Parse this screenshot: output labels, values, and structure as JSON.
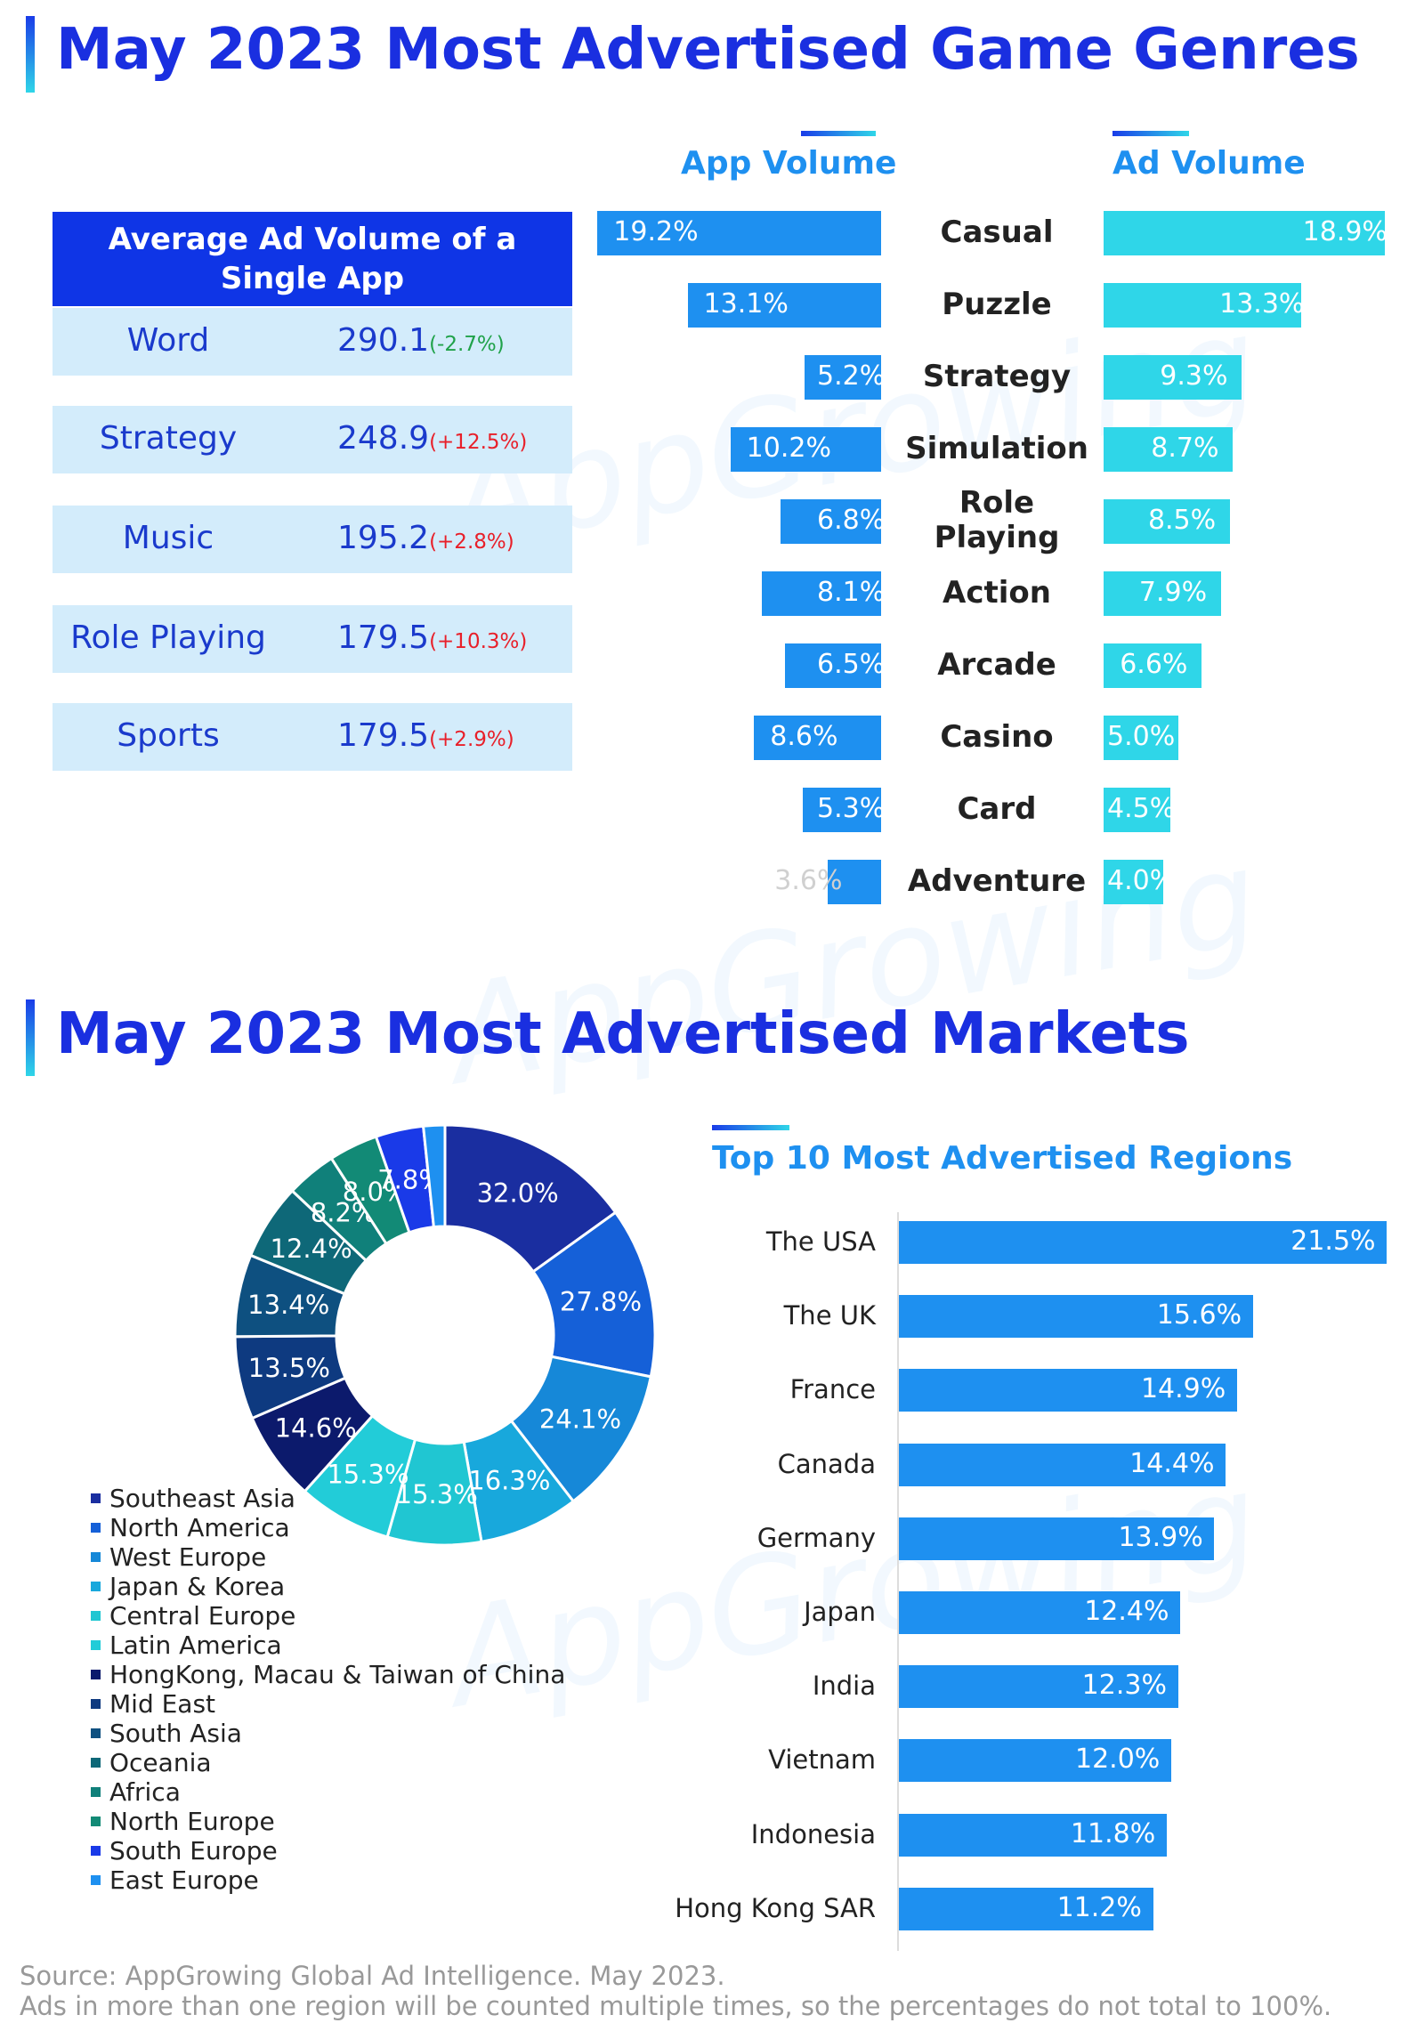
{
  "section1": {
    "title": "May 2023 Most Advertised Game Genres"
  },
  "section2": {
    "title": "May 2023 Most Advertised Markets"
  },
  "avg_table": {
    "title": "Average Ad Volume of a Single App",
    "rows": [
      {
        "name": "Word",
        "value": "290.1",
        "change": "(-2.7%)",
        "dir": "down"
      },
      {
        "name": "Strategy",
        "value": "248.9",
        "change": "(+12.5%)",
        "dir": "up"
      },
      {
        "name": "Music",
        "value": "195.2",
        "change": "(+2.8%)",
        "dir": "up"
      },
      {
        "name": "Role Playing",
        "value": "179.5",
        "change": "(+10.3%)",
        "dir": "up"
      },
      {
        "name": "Sports",
        "value": "179.5",
        "change": "(+2.9%)",
        "dir": "up"
      }
    ]
  },
  "watermark": "AppGrowing",
  "footnote": {
    "source": "Source: AppGrowing Global Ad Intelligence. May 2023.",
    "note": "Ads in more than one region will be counted multiple times, so the percentages do not total to 100%."
  },
  "chart_data": [
    {
      "type": "bar",
      "orientation": "horizontal-butterfly",
      "categories": [
        "Casual",
        "Puzzle",
        "Strategy",
        "Simulation",
        "Role Playing",
        "Action",
        "Arcade",
        "Casino",
        "Card",
        "Adventure"
      ],
      "series": [
        {
          "name": "App Volume",
          "values": [
            19.2,
            13.1,
            5.2,
            10.2,
            6.8,
            8.1,
            6.5,
            8.6,
            5.3,
            3.6
          ],
          "labels": [
            "19.2%",
            "13.1%",
            "5.2%",
            "10.2%",
            "6.8%",
            "8.1%",
            "6.5%",
            "8.6%",
            "5.3%",
            "3.6%"
          ],
          "color": "#1e90f0"
        },
        {
          "name": "Ad Volume",
          "values": [
            18.9,
            13.3,
            9.3,
            8.7,
            8.5,
            7.9,
            6.6,
            5.0,
            4.5,
            4.0
          ],
          "labels": [
            "18.9%",
            "13.3%",
            "9.3%",
            "8.7%",
            "8.5%",
            "7.9%",
            "6.6%",
            "5.0%",
            "4.5%",
            "4.0%"
          ],
          "color": "#2fd6e8"
        }
      ],
      "unit": "%"
    },
    {
      "type": "pie",
      "style": "donut",
      "categories": [
        "Southeast Asia",
        "North America",
        "West Europe",
        "Japan & Korea",
        "Central Europe",
        "Latin America",
        "HongKong, Macau & Taiwan of China",
        "Mid East",
        "South Asia",
        "Oceania",
        "Africa",
        "North Europe",
        "South Europe",
        "East Europe"
      ],
      "values": [
        32.0,
        27.8,
        24.1,
        16.3,
        15.3,
        15.3,
        14.6,
        13.5,
        13.4,
        12.4,
        8.2,
        8.0,
        7.8,
        3.5
      ],
      "labels": [
        "32.0%",
        "27.8%",
        "24.1%",
        "16.3%",
        "15.3%",
        "15.3%",
        "14.6%",
        "13.5%",
        "13.4%",
        "12.4%",
        "8.2%",
        "8.0%",
        "7.8%",
        ""
      ],
      "colors": [
        "#1a2ea0",
        "#1560d8",
        "#1688d8",
        "#18a8dc",
        "#20c6d2",
        "#22ccd8",
        "#0c1a6c",
        "#0e3a80",
        "#0e5080",
        "#0e6878",
        "#10807a",
        "#128a76",
        "#1a3ae8",
        "#1e90f0"
      ],
      "legend": "bottom-left"
    },
    {
      "type": "bar",
      "orientation": "horizontal",
      "title": "Top 10 Most Advertised Regions",
      "categories": [
        "The USA",
        "The UK",
        "France",
        "Canada",
        "Germany",
        "Japan",
        "India",
        "Vietnam",
        "Indonesia",
        "Hong Kong SAR"
      ],
      "values": [
        21.5,
        15.6,
        14.9,
        14.4,
        13.9,
        12.4,
        12.3,
        12.0,
        11.8,
        11.2
      ],
      "labels": [
        "21.5%",
        "15.6%",
        "14.9%",
        "14.4%",
        "13.9%",
        "12.4%",
        "12.3%",
        "12.0%",
        "11.8%",
        "11.2%"
      ],
      "color": "#1e90f0",
      "unit": "%"
    }
  ]
}
